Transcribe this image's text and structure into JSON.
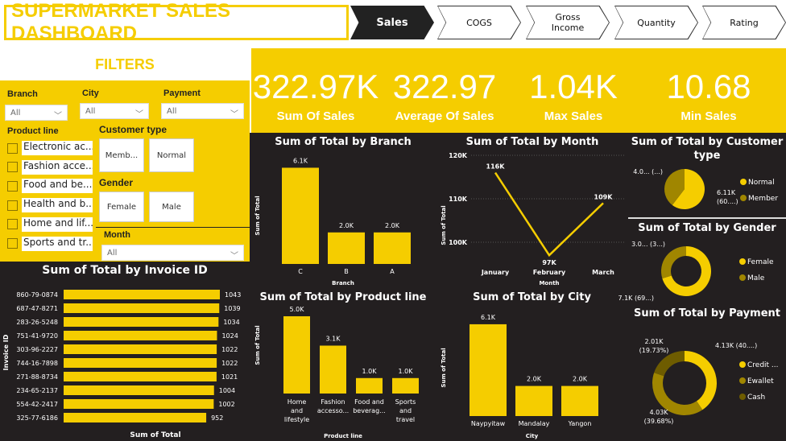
{
  "header": {
    "title": "SUPERMARKET SALES DASHBOARD",
    "nav": [
      "Sales",
      "COGS",
      "Gross Income",
      "Quantity",
      "Rating"
    ],
    "active": "Sales"
  },
  "filters": {
    "title": "FILTERS",
    "branch": {
      "label": "Branch",
      "value": "All"
    },
    "city": {
      "label": "City",
      "value": "All"
    },
    "payment": {
      "label": "Payment",
      "value": "All"
    },
    "product_line": {
      "label": "Product line",
      "items": [
        "Electronic ac...",
        "Fashion acce...",
        "Food and be...",
        "Health and b...",
        "Home and lif...",
        "Sports and tr..."
      ]
    },
    "customer_type": {
      "label": "Customer type",
      "items": [
        "Memb...",
        "Normal"
      ]
    },
    "gender": {
      "label": "Gender",
      "items": [
        "Female",
        "Male"
      ]
    },
    "month": {
      "label": "Month",
      "value": "All"
    }
  },
  "kpis": [
    {
      "value": "322.97K",
      "label": "Sum Of Sales"
    },
    {
      "value": "322.97",
      "label": "Average Of Sales"
    },
    {
      "value": "1.04K",
      "label": "Max Sales"
    },
    {
      "value": "10.68",
      "label": "Min Sales"
    }
  ],
  "colors": {
    "accent": "#f5cd00",
    "dark": "#231f20",
    "mid": "#a08600",
    "darkgold": "#6e5c00"
  },
  "chart_data": [
    {
      "id": "branch",
      "type": "bar",
      "title": "Sum of Total by Branch",
      "xlabel": "Branch",
      "ylabel": "Sum of Total",
      "categories": [
        "C",
        "B",
        "A"
      ],
      "values": [
        6.1,
        2.0,
        2.0
      ],
      "labels": [
        "6.1K",
        "2.0K",
        "2.0K"
      ]
    },
    {
      "id": "month",
      "type": "line",
      "title": "Sum of Total by Month",
      "xlabel": "Month",
      "ylabel": "Sum of Total",
      "categories": [
        "January",
        "February",
        "March"
      ],
      "values": [
        116,
        97,
        109
      ],
      "labels": [
        "116K",
        "97K",
        "109K"
      ],
      "yticks": [
        "100K",
        "110K",
        "120K"
      ],
      "ylim": [
        95,
        120
      ]
    },
    {
      "id": "customer",
      "type": "pie",
      "title": "Sum of Total by Customer type",
      "legend": [
        "Normal",
        "Member"
      ],
      "values": [
        6.11,
        4.0
      ],
      "labels": [
        "6.11K (60....)",
        "4.0... (...)"
      ]
    },
    {
      "id": "gender",
      "type": "donut",
      "title": "Sum of Total by Gender",
      "legend": [
        "Female",
        "Male"
      ],
      "values": [
        7.1,
        3.0
      ],
      "labels": [
        "7.1K (69...)",
        "3.0... (3...)"
      ]
    },
    {
      "id": "payment",
      "type": "donut",
      "title": "Sum of Total by Payment",
      "legend": [
        "Credit ...",
        "Ewallet",
        "Cash"
      ],
      "values": [
        4.13,
        4.03,
        2.01
      ],
      "labels": [
        "4.13K (40....)",
        "4.03K (39.68%)",
        "2.01K (19.73%)"
      ]
    },
    {
      "id": "product",
      "type": "bar",
      "title": "Sum of Total by Product line",
      "xlabel": "Product line",
      "ylabel": "Sum of Total",
      "categories": [
        "Home and lifestyle",
        "Fashion accesso...",
        "Food and beverag...",
        "Sports and travel"
      ],
      "values": [
        5.0,
        3.1,
        1.0,
        1.0
      ],
      "labels": [
        "5.0K",
        "3.1K",
        "1.0K",
        "1.0K"
      ]
    },
    {
      "id": "city",
      "type": "bar",
      "title": "Sum of Total by City",
      "xlabel": "City",
      "ylabel": "Sum of Total",
      "categories": [
        "Naypyitaw",
        "Mandalay",
        "Yangon"
      ],
      "values": [
        6.1,
        2.0,
        2.0
      ],
      "labels": [
        "6.1K",
        "2.0K",
        "2.0K"
      ]
    },
    {
      "id": "invoice",
      "type": "hbar",
      "title": "Sum of Total by Invoice ID",
      "xlabel": "Sum of Total",
      "ylabel": "Invoice ID",
      "categories": [
        "860-79-0874",
        "687-47-8271",
        "283-26-5248",
        "751-41-9720",
        "303-96-2227",
        "744-16-7898",
        "271-88-8734",
        "234-65-2137",
        "554-42-2417",
        "325-77-6186"
      ],
      "values": [
        1043,
        1039,
        1034,
        1024,
        1022,
        1022,
        1021,
        1004,
        1002,
        952
      ]
    }
  ]
}
